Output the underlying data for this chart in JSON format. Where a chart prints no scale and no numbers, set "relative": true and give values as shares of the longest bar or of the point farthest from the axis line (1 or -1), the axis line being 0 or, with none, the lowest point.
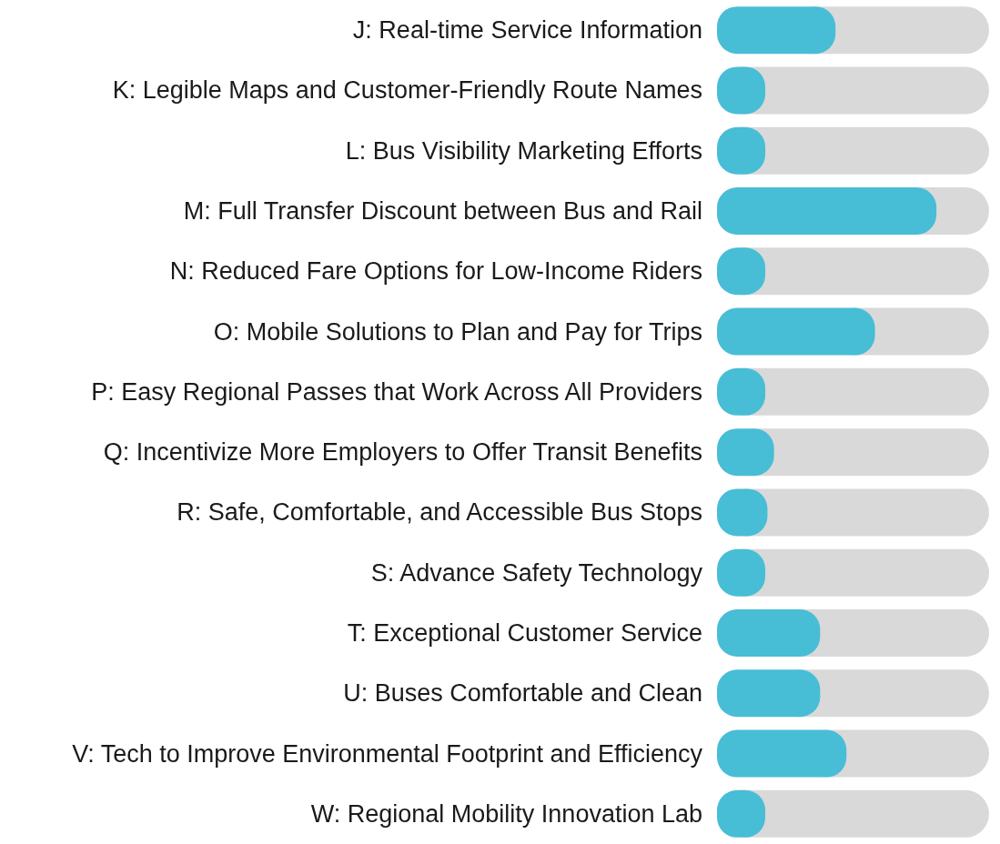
{
  "chart_data": {
    "type": "bar",
    "orientation": "horizontal",
    "relative": true,
    "color": "#48bdd6",
    "categories": [
      "J: Real-time Service Information",
      "K: Legible Maps and Customer-Friendly Route Names",
      "L: Bus Visibility Marketing Efforts",
      "M: Full Transfer Discount between Bus and Rail",
      "N: Reduced Fare Options for Low-Income Riders",
      "O: Mobile Solutions to Plan and Pay for Trips",
      "P: Easy Regional Passes that Work Across All Providers",
      "Q: Incentivize More Employers to Offer Transit Benefits",
      "R: Safe, Comfortable, and Accessible Bus Stops",
      "S: Advance Safety Technology",
      "T: Exceptional Customer Service",
      "U: Buses Comfortable and Clean",
      "V: Tech to Improve Environmental Footprint and Efficiency",
      "W: Regional Mobility Innovation Lab"
    ],
    "values": [
      0.54,
      0.22,
      0.22,
      1,
      0.22,
      0.72,
      0.22,
      0.26,
      0.23,
      0.22,
      0.47,
      0.47,
      0.59,
      0.22
    ]
  }
}
